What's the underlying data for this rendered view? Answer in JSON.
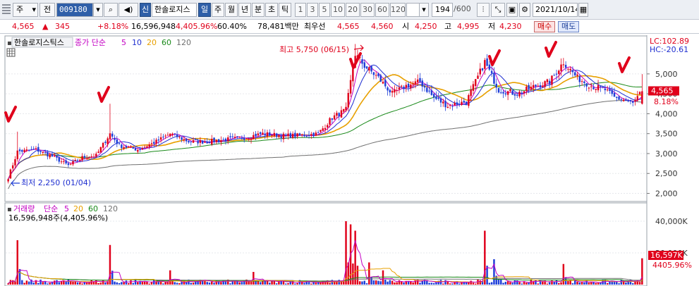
{
  "toolbar": {
    "market": "주",
    "scope": "전",
    "code": "009180",
    "chart_type_badge": "신",
    "stock_name": "한솔로지스",
    "periods": [
      "일",
      "주",
      "월",
      "년",
      "분",
      "초",
      "틱"
    ],
    "active_period": "일",
    "intervals": [
      "1",
      "3",
      "5",
      "10",
      "20",
      "30",
      "60",
      "120"
    ],
    "view_count": "194",
    "view_total": "/600",
    "date": "2021/10/14"
  },
  "quote": {
    "price": "4,565",
    "change": "345",
    "change_pct": "+8.18%",
    "volume": "16,596,948",
    "volume_ratio": "4,405.96%",
    "turnover": "60.40%",
    "amount": "78,481백만",
    "best_label": "최우선",
    "ask": "4,565",
    "bid": "4,560",
    "open_label": "시",
    "open": "4,250",
    "high_label": "고",
    "high": "4,995",
    "low_label": "저",
    "low": "4,230",
    "buy_label": "매수",
    "sell_label": "매도"
  },
  "price_panel": {
    "name": "한솔로지스틱스",
    "ma_label": "종가 단순",
    "ma_periods": [
      "5",
      "10",
      "20",
      "60",
      "120"
    ],
    "high_annotation": "최고 5,750 (06/15)",
    "low_annotation": "최저 2,250 (01/04)",
    "lc": "LC:102.89",
    "hc": "HC:-20.61",
    "current_price_tag": "4,565",
    "current_pct_tag": "8.18%"
  },
  "volume_panel": {
    "name": "거래량",
    "ma_label": "단순",
    "ma_periods": [
      "5",
      "20",
      "60",
      "120"
    ],
    "summary": "16,596,948주(4,405.96%)",
    "current_tag": "16,597K",
    "current_pct_tag": "4405.96%"
  },
  "colors": {
    "up": "#e0001b",
    "down": "#1f3fd8",
    "ma5": "#c300c3",
    "ma10": "#1f2fd0",
    "ma20": "#e8a000",
    "ma60": "#1a8a1a",
    "ma120": "#707070",
    "annotation": "#e0001b"
  },
  "chart_data": {
    "type": "candlestick",
    "y_ticks": [
      2000,
      2500,
      3000,
      3500,
      4000,
      4500,
      5000
    ],
    "y_range": [
      1850,
      5900
    ],
    "volume_ticks": [
      "20,000K",
      "40,000K"
    ],
    "volume_range": [
      0,
      48000
    ],
    "highest": 5750,
    "lowest": 2250,
    "last_close": 4565,
    "keypoints": [
      [
        0,
        2400
      ],
      [
        4,
        3050
      ],
      [
        12,
        3100
      ],
      [
        20,
        2900
      ],
      [
        26,
        2700
      ],
      [
        32,
        2900
      ],
      [
        38,
        2950
      ],
      [
        44,
        3500
      ],
      [
        48,
        3200
      ],
      [
        56,
        3100
      ],
      [
        64,
        3300
      ],
      [
        70,
        3500
      ],
      [
        78,
        3300
      ],
      [
        86,
        3300
      ],
      [
        94,
        3350
      ],
      [
        102,
        3400
      ],
      [
        110,
        3500
      ],
      [
        118,
        3450
      ],
      [
        126,
        3450
      ],
      [
        134,
        3500
      ],
      [
        140,
        3900
      ],
      [
        146,
        4100
      ],
      [
        150,
        5500
      ],
      [
        154,
        5200
      ],
      [
        160,
        4900
      ],
      [
        166,
        4500
      ],
      [
        172,
        4700
      ],
      [
        178,
        4800
      ],
      [
        184,
        4400
      ],
      [
        190,
        4200
      ],
      [
        198,
        4300
      ],
      [
        206,
        5300
      ],
      [
        212,
        4600
      ],
      [
        220,
        4500
      ],
      [
        228,
        4700
      ],
      [
        234,
        4800
      ],
      [
        240,
        5300
      ],
      [
        246,
        4900
      ],
      [
        252,
        4700
      ],
      [
        258,
        4600
      ],
      [
        262,
        4400
      ],
      [
        266,
        4350
      ],
      [
        270,
        4250
      ],
      [
        274,
        4565
      ]
    ],
    "volume_spikes": [
      [
        4,
        28000
      ],
      [
        44,
        25000
      ],
      [
        70,
        9000
      ],
      [
        106,
        8000
      ],
      [
        146,
        40000
      ],
      [
        148,
        38000
      ],
      [
        150,
        34000
      ],
      [
        156,
        14000
      ],
      [
        162,
        9000
      ],
      [
        206,
        34000
      ],
      [
        210,
        16000
      ],
      [
        240,
        13000
      ],
      [
        274,
        16597
      ]
    ]
  }
}
